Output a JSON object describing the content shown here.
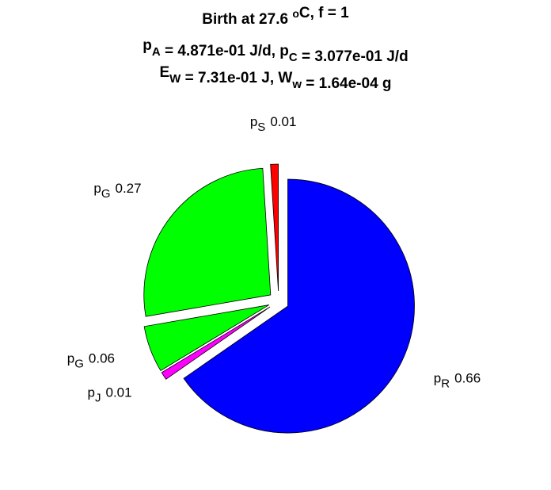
{
  "chart_data": {
    "type": "pie",
    "title": [
      [
        {
          "t": "Birth at 27.6 "
        },
        {
          "sup": "o"
        },
        {
          "t": "C, f = 1"
        }
      ],
      [
        {
          "t": "p"
        },
        {
          "sub": "A"
        },
        {
          "t": " = 4.871e-01 J/d, p"
        },
        {
          "sub": "C"
        },
        {
          "t": " = 3.077e-01 J/d"
        }
      ],
      [
        {
          "t": "E"
        },
        {
          "sub": "W"
        },
        {
          "t": " = 7.31e-01 J, W"
        },
        {
          "sub": "w"
        },
        {
          "t": " = 1.64e-04 g"
        }
      ]
    ],
    "labels": [
      {
        "base": "p",
        "sub": "R"
      },
      {
        "base": "p",
        "sub": "J"
      },
      {
        "base": "p",
        "sub": "G"
      },
      {
        "base": "p",
        "sub": "G"
      },
      {
        "base": "p",
        "sub": "S"
      }
    ],
    "values": [
      0.66,
      0.01,
      0.06,
      0.27,
      0.01
    ],
    "colors": [
      "#0000ff",
      "#ff00ff",
      "#00ff00",
      "#00ff00",
      "#ff0000"
    ]
  }
}
